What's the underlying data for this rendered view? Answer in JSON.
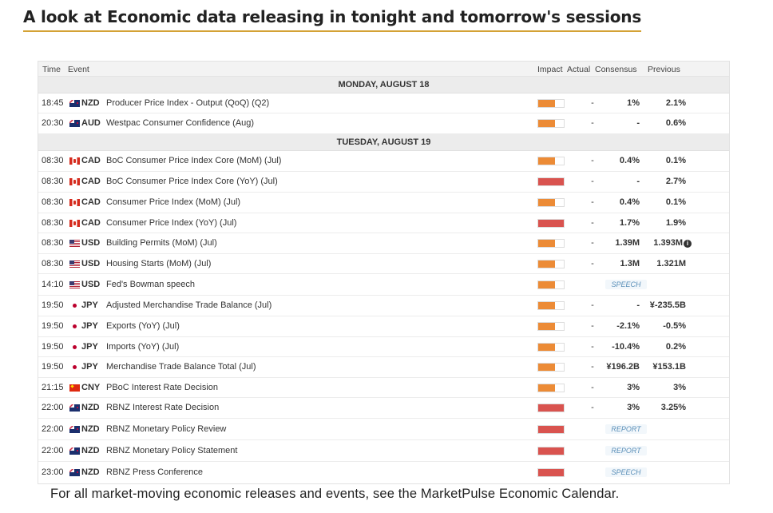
{
  "headline": "A look at Economic data releasing in tonight and tomorrow's sessions",
  "columns": {
    "time": "Time",
    "event": "Event",
    "impact": "Impact",
    "actual": "Actual",
    "consensus": "Consensus",
    "previous": "Previous"
  },
  "colors": {
    "medium_impact": "#ec8b36",
    "high_impact": "#d9534f",
    "headline_underline": "#d4a235"
  },
  "days": [
    {
      "label": "MONDAY, AUGUST 18",
      "rows": [
        {
          "time": "18:45",
          "flag": "nz-flag-icon",
          "currency": "NZD",
          "event": "Producer Price Index - Output (QoQ) (Q2)",
          "impact": "medium",
          "actual": "-",
          "consensus": "1%",
          "previous": "2.1%"
        },
        {
          "time": "20:30",
          "flag": "au-flag-icon",
          "currency": "AUD",
          "event": "Westpac Consumer Confidence (Aug)",
          "impact": "medium",
          "actual": "-",
          "consensus": "-",
          "previous": "0.6%"
        }
      ]
    },
    {
      "label": "TUESDAY, AUGUST 19",
      "rows": [
        {
          "time": "08:30",
          "flag": "ca-flag-icon",
          "currency": "CAD",
          "event": "BoC Consumer Price Index Core (MoM) (Jul)",
          "impact": "medium",
          "actual": "-",
          "consensus": "0.4%",
          "previous": "0.1%"
        },
        {
          "time": "08:30",
          "flag": "ca-flag-icon",
          "currency": "CAD",
          "event": "BoC Consumer Price Index Core (YoY) (Jul)",
          "impact": "high",
          "actual": "-",
          "consensus": "-",
          "previous": "2.7%"
        },
        {
          "time": "08:30",
          "flag": "ca-flag-icon",
          "currency": "CAD",
          "event": "Consumer Price Index (MoM) (Jul)",
          "impact": "medium",
          "actual": "-",
          "consensus": "0.4%",
          "previous": "0.1%"
        },
        {
          "time": "08:30",
          "flag": "ca-flag-icon",
          "currency": "CAD",
          "event": "Consumer Price Index (YoY) (Jul)",
          "impact": "high",
          "actual": "-",
          "consensus": "1.7%",
          "previous": "1.9%"
        },
        {
          "time": "08:30",
          "flag": "us-flag-icon",
          "currency": "USD",
          "event": "Building Permits (MoM) (Jul)",
          "impact": "medium",
          "actual": "-",
          "consensus": "1.39M",
          "previous": "1.393M",
          "info": true
        },
        {
          "time": "08:30",
          "flag": "us-flag-icon",
          "currency": "USD",
          "event": "Housing Starts (MoM) (Jul)",
          "impact": "medium",
          "actual": "-",
          "consensus": "1.3M",
          "previous": "1.321M"
        },
        {
          "time": "14:10",
          "flag": "us-flag-icon",
          "currency": "USD",
          "event": "Fed's Bowman speech",
          "impact": "medium",
          "tag": "SPEECH"
        },
        {
          "time": "19:50",
          "flag": "jp-flag-icon",
          "currency": "JPY",
          "event": "Adjusted Merchandise Trade Balance (Jul)",
          "impact": "medium",
          "actual": "-",
          "consensus": "-",
          "previous": "¥-235.5B"
        },
        {
          "time": "19:50",
          "flag": "jp-flag-icon",
          "currency": "JPY",
          "event": "Exports (YoY) (Jul)",
          "impact": "medium",
          "actual": "-",
          "consensus": "-2.1%",
          "previous": "-0.5%"
        },
        {
          "time": "19:50",
          "flag": "jp-flag-icon",
          "currency": "JPY",
          "event": "Imports (YoY) (Jul)",
          "impact": "medium",
          "actual": "-",
          "consensus": "-10.4%",
          "previous": "0.2%"
        },
        {
          "time": "19:50",
          "flag": "jp-flag-icon",
          "currency": "JPY",
          "event": "Merchandise Trade Balance Total (Jul)",
          "impact": "medium",
          "actual": "-",
          "consensus": "¥196.2B",
          "previous": "¥153.1B"
        },
        {
          "time": "21:15",
          "flag": "cn-flag-icon",
          "currency": "CNY",
          "event": "PBoC Interest Rate Decision",
          "impact": "medium",
          "actual": "-",
          "consensus": "3%",
          "previous": "3%"
        },
        {
          "time": "22:00",
          "flag": "nz-flag-icon",
          "currency": "NZD",
          "event": "RBNZ Interest Rate Decision",
          "impact": "high",
          "actual": "-",
          "consensus": "3%",
          "previous": "3.25%"
        },
        {
          "time": "22:00",
          "flag": "nz-flag-icon",
          "currency": "NZD",
          "event": "RBNZ Monetary Policy Review",
          "impact": "high",
          "tag": "REPORT"
        },
        {
          "time": "22:00",
          "flag": "nz-flag-icon",
          "currency": "NZD",
          "event": "RBNZ Monetary Policy Statement",
          "impact": "high",
          "tag": "REPORT"
        },
        {
          "time": "23:00",
          "flag": "nz-flag-icon",
          "currency": "NZD",
          "event": "RBNZ Press Conference",
          "impact": "high",
          "tag": "SPEECH"
        }
      ]
    }
  ],
  "footer": "For all market-moving economic releases and events, see the MarketPulse Economic Calendar."
}
